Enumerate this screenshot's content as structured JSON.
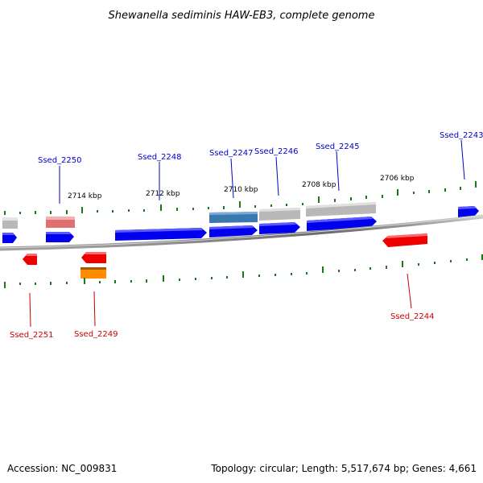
{
  "title": "Shewanella sediminis HAW-EB3, complete genome",
  "footer": {
    "accession": "Accession: NC_009831",
    "summary": "Topology: circular; Length: 5,517,674 bp; Genes: 4,661"
  },
  "scale_labels": [
    "2714 kbp",
    "2712 kbp",
    "2710 kbp",
    "2708 kbp",
    "2706 kbp"
  ],
  "gene_labels": {
    "top": [
      "Ssed_2250",
      "Ssed_2248",
      "Ssed_2247",
      "Ssed_2246",
      "Ssed_2245",
      "Ssed_2243"
    ],
    "bottom": [
      "Ssed_2251",
      "Ssed_2249",
      "Ssed_2244"
    ]
  },
  "colors": {
    "forward_gene": "#0000ee",
    "reverse_gene": "#ee0000",
    "highlight_gene": "#3b78b0",
    "pseudo_gene": "#b8b8b8",
    "light_red_gene": "#e07070",
    "orange_gene": "#ff8c00",
    "label_top": "#0000cc",
    "label_bottom": "#cc0000",
    "tick": "#1a7a1a",
    "backbone": "#777777"
  }
}
